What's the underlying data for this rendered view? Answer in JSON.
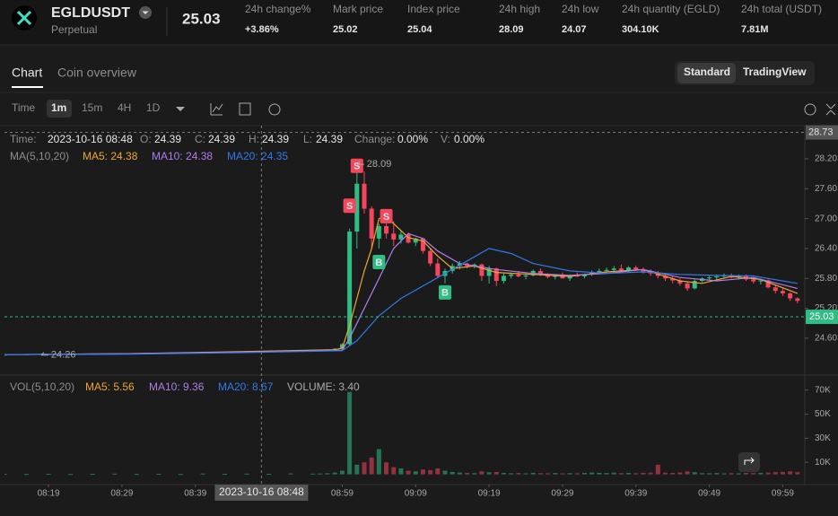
{
  "header": {
    "symbol": "EGLDUSDT",
    "contract": "Perpetual",
    "last_price": "25.03",
    "stats": [
      {
        "label": "24h change%",
        "value": "+3.86%",
        "color": "#2ebd85"
      },
      {
        "label": "Mark price",
        "value": "25.02",
        "color": "#f6465d"
      },
      {
        "label": "Index price",
        "value": "25.04"
      },
      {
        "label": "24h high",
        "value": "28.09"
      },
      {
        "label": "24h low",
        "value": "24.07"
      },
      {
        "label": "24h quantity (EGLD)",
        "value": "304.10K"
      },
      {
        "label": "24h total (USDT)",
        "value": "7.81M"
      }
    ]
  },
  "tabs": [
    "Chart",
    "Coin overview"
  ],
  "views": [
    "Standard",
    "TradingView"
  ],
  "intervals": [
    "Time",
    "1m",
    "15m",
    "4H",
    "1D"
  ],
  "chart_data": [
    {
      "type": "candlestick",
      "x": [
        "08:13",
        "08:16",
        "08:19",
        "08:22",
        "08:25",
        "08:28",
        "08:31",
        "08:34",
        "08:37",
        "08:40",
        "08:43",
        "08:46",
        "08:49",
        "08:52",
        "08:55",
        "08:56",
        "08:57",
        "08:58",
        "08:59",
        "09:00",
        "09:01",
        "09:02",
        "09:03",
        "09:04",
        "09:05",
        "09:06",
        "09:07",
        "09:08",
        "09:09",
        "09:10",
        "09:11",
        "09:12",
        "09:13",
        "09:14",
        "09:15",
        "09:16",
        "09:17",
        "09:18",
        "09:19",
        "09:20",
        "09:21",
        "09:22",
        "09:23",
        "09:24",
        "09:25",
        "09:26",
        "09:27",
        "09:28",
        "09:29",
        "09:30",
        "09:31",
        "09:32",
        "09:33",
        "09:34",
        "09:35",
        "09:36",
        "09:37",
        "09:38",
        "09:39",
        "09:40",
        "09:41",
        "09:42",
        "09:43",
        "09:44",
        "09:45",
        "09:46",
        "09:47",
        "09:48",
        "09:49",
        "09:50",
        "09:51",
        "09:52",
        "09:53",
        "09:54",
        "09:55",
        "09:56",
        "09:57",
        "09:58",
        "09:59",
        "10:00",
        "10:01"
      ],
      "candles": [
        [
          24.27,
          24.28,
          24.26,
          24.27
        ],
        [
          24.27,
          24.28,
          24.27,
          24.28
        ],
        [
          24.28,
          24.28,
          24.27,
          24.28
        ],
        [
          24.28,
          24.29,
          24.28,
          24.28
        ],
        [
          24.28,
          24.29,
          24.28,
          24.29
        ],
        [
          24.29,
          24.3,
          24.29,
          24.29
        ],
        [
          24.29,
          24.3,
          24.29,
          24.3
        ],
        [
          24.3,
          24.31,
          24.3,
          24.31
        ],
        [
          24.31,
          24.32,
          24.3,
          24.31
        ],
        [
          24.31,
          24.33,
          24.31,
          24.32
        ],
        [
          24.32,
          24.33,
          24.32,
          24.33
        ],
        [
          24.33,
          24.34,
          24.33,
          24.34
        ],
        [
          24.34,
          24.35,
          24.34,
          24.34
        ],
        [
          24.34,
          24.35,
          24.34,
          24.35
        ],
        [
          24.35,
          24.36,
          24.35,
          24.36
        ],
        [
          24.36,
          24.37,
          24.35,
          24.36
        ],
        [
          24.36,
          24.38,
          24.36,
          24.37
        ],
        [
          24.37,
          24.4,
          24.36,
          24.39
        ],
        [
          24.39,
          24.5,
          24.38,
          24.48
        ],
        [
          24.48,
          26.8,
          24.45,
          26.74
        ],
        [
          26.74,
          28.09,
          26.4,
          27.7
        ],
        [
          27.7,
          27.95,
          27.1,
          27.2
        ],
        [
          27.2,
          27.25,
          26.4,
          26.6
        ],
        [
          26.6,
          26.9,
          26.4,
          26.85
        ],
        [
          26.85,
          26.95,
          26.6,
          26.7
        ],
        [
          26.7,
          26.95,
          26.45,
          26.58
        ],
        [
          26.58,
          26.75,
          26.5,
          26.68
        ],
        [
          26.68,
          26.72,
          26.5,
          26.52
        ],
        [
          26.52,
          26.62,
          26.45,
          26.6
        ],
        [
          26.6,
          26.62,
          26.3,
          26.35
        ],
        [
          26.35,
          26.4,
          26.05,
          26.1
        ],
        [
          26.1,
          26.2,
          25.8,
          25.85
        ],
        [
          25.85,
          26.0,
          25.7,
          25.95
        ],
        [
          25.95,
          26.1,
          25.9,
          26.05
        ],
        [
          26.05,
          26.15,
          25.98,
          26.1
        ],
        [
          26.1,
          26.12,
          26.0,
          26.05
        ],
        [
          26.05,
          26.1,
          26.0,
          26.08
        ],
        [
          26.08,
          26.1,
          25.75,
          25.85
        ],
        [
          25.85,
          26.05,
          25.7,
          26.0
        ],
        [
          26.0,
          26.02,
          25.65,
          25.75
        ],
        [
          25.75,
          25.9,
          25.7,
          25.85
        ],
        [
          25.85,
          25.92,
          25.8,
          25.88
        ],
        [
          25.88,
          25.95,
          25.82,
          25.84
        ],
        [
          25.84,
          25.9,
          25.78,
          25.86
        ],
        [
          25.86,
          25.98,
          25.84,
          25.95
        ],
        [
          25.95,
          26.0,
          25.85,
          25.87
        ],
        [
          25.87,
          25.9,
          25.8,
          25.83
        ],
        [
          25.83,
          25.88,
          25.78,
          25.85
        ],
        [
          25.85,
          25.92,
          25.82,
          25.8
        ],
        [
          25.8,
          25.88,
          25.75,
          25.86
        ],
        [
          25.86,
          25.92,
          25.83,
          25.84
        ],
        [
          25.84,
          25.9,
          25.8,
          25.88
        ],
        [
          25.88,
          25.96,
          25.85,
          25.92
        ],
        [
          25.92,
          26.0,
          25.88,
          25.95
        ],
        [
          25.95,
          26.02,
          25.9,
          25.97
        ],
        [
          25.97,
          26.05,
          25.92,
          26.0
        ],
        [
          26.0,
          26.08,
          25.95,
          25.96
        ],
        [
          25.96,
          26.05,
          25.92,
          26.02
        ],
        [
          26.02,
          26.06,
          25.95,
          25.98
        ],
        [
          25.98,
          26.02,
          25.9,
          25.94
        ],
        [
          25.94,
          25.98,
          25.85,
          25.9
        ],
        [
          25.9,
          25.95,
          25.8,
          25.85
        ],
        [
          25.85,
          25.88,
          25.75,
          25.8
        ],
        [
          25.8,
          25.85,
          25.7,
          25.76
        ],
        [
          25.76,
          25.8,
          25.65,
          25.7
        ],
        [
          25.7,
          25.74,
          25.55,
          25.6
        ],
        [
          25.6,
          25.78,
          25.58,
          25.75
        ],
        [
          25.75,
          25.82,
          25.72,
          25.8
        ],
        [
          25.8,
          25.85,
          25.76,
          25.82
        ],
        [
          25.82,
          25.88,
          25.78,
          25.84
        ],
        [
          25.84,
          25.9,
          25.8,
          25.86
        ],
        [
          25.86,
          25.9,
          25.8,
          25.82
        ],
        [
          25.82,
          25.88,
          25.78,
          25.85
        ],
        [
          25.85,
          25.88,
          25.75,
          25.78
        ],
        [
          25.78,
          25.82,
          25.7,
          25.74
        ],
        [
          25.74,
          25.8,
          25.68,
          25.76
        ],
        [
          25.76,
          25.78,
          25.6,
          25.62
        ],
        [
          25.62,
          25.66,
          25.5,
          25.55
        ],
        [
          25.55,
          25.6,
          25.45,
          25.5
        ],
        [
          25.5,
          25.52,
          25.35,
          25.4
        ],
        [
          25.4,
          25.42,
          25.3,
          25.35
        ]
      ],
      "up_color": "#2ebd85",
      "down_color": "#f6465d",
      "xlim": [
        "08:13",
        "10:02"
      ],
      "xticks": [
        "08:19",
        "08:29",
        "08:39",
        "08:59",
        "09:09",
        "09:19",
        "09:29",
        "09:39",
        "09:49",
        "09:59"
      ],
      "ylim": [
        23.86,
        28.74
      ],
      "yticks": [
        {
          "value": 24.6,
          "label": "24.60"
        },
        {
          "value": 25.2,
          "label": "25.20"
        },
        {
          "value": 25.8,
          "label": "25.80"
        },
        {
          "value": 26.4,
          "label": "26.40"
        },
        {
          "value": 27.0,
          "label": "27.00"
        },
        {
          "value": 27.6,
          "label": "27.60"
        },
        {
          "value": 28.2,
          "label": "28.20"
        }
      ],
      "info": [
        {
          "label": "Time:",
          "value": "2023-10-16 08:48"
        },
        {
          "label": "O:",
          "value": "24.39"
        },
        {
          "label": "C:",
          "value": "24.39"
        },
        {
          "label": "H:",
          "value": "24.39"
        },
        {
          "label": "L:",
          "value": "24.39"
        },
        {
          "label": "Change:",
          "value": "0.00%"
        },
        {
          "label": "V:",
          "value": "0.00%"
        }
      ],
      "legend_title": "MA(5,10,20)",
      "series": [
        {
          "label": "MA5: 24.38",
          "color": "#f0a52e",
          "x": [
            "08:13",
            "08:30",
            "08:45",
            "08:58",
            "08:59",
            "09:00",
            "09:01",
            "09:02",
            "09:03",
            "09:04",
            "09:05",
            "09:06",
            "09:08",
            "09:10",
            "09:12",
            "09:14",
            "09:17",
            "09:20",
            "09:25",
            "09:30",
            "09:35",
            "09:40",
            "09:45",
            "09:48",
            "09:52",
            "09:56",
            "10:01"
          ],
          "values": [
            24.27,
            24.29,
            24.33,
            24.37,
            24.4,
            24.85,
            25.4,
            25.95,
            26.4,
            27.0,
            27.05,
            26.9,
            26.62,
            26.55,
            26.25,
            26.0,
            26.05,
            25.92,
            25.88,
            25.84,
            25.93,
            25.98,
            25.75,
            25.7,
            25.84,
            25.78,
            25.5
          ]
        },
        {
          "label": "MA10: 24.38",
          "color": "#b07ce8",
          "x": [
            "08:13",
            "08:30",
            "08:45",
            "08:59",
            "09:00",
            "09:02",
            "09:04",
            "09:06",
            "09:08",
            "09:10",
            "09:12",
            "09:15",
            "09:20",
            "09:25",
            "09:30",
            "09:35",
            "09:40",
            "09:45",
            "09:50",
            "09:55",
            "10:01"
          ],
          "values": [
            24.27,
            24.29,
            24.32,
            24.36,
            24.6,
            25.2,
            25.8,
            26.4,
            26.7,
            26.6,
            26.35,
            26.1,
            25.98,
            25.9,
            25.86,
            25.9,
            25.98,
            25.82,
            25.75,
            25.82,
            25.6
          ]
        },
        {
          "label": "MA20: 24.35",
          "color": "#2f7ae5",
          "x": [
            "08:13",
            "08:30",
            "08:45",
            "08:59",
            "09:01",
            "09:04",
            "09:07",
            "09:10",
            "09:13",
            "09:16",
            "09:19",
            "09:22",
            "09:25",
            "09:30",
            "09:35",
            "09:40",
            "09:45",
            "09:50",
            "09:55",
            "10:01"
          ],
          "values": [
            24.27,
            24.28,
            24.31,
            24.35,
            24.55,
            25.05,
            25.4,
            25.65,
            25.9,
            26.15,
            26.4,
            26.3,
            26.1,
            25.95,
            25.9,
            25.93,
            25.88,
            25.86,
            25.85,
            25.7
          ]
        }
      ],
      "markers": [
        {
          "text": "S",
          "x": "09:01",
          "y": 28.06,
          "color": "#f6465d"
        },
        {
          "text": "S",
          "x": "09:00",
          "y": 27.26,
          "color": "#f6465d"
        },
        {
          "text": "S",
          "x": "09:05",
          "y": 27.05,
          "color": "#f6465d"
        },
        {
          "text": "B",
          "x": "09:04",
          "y": 26.13,
          "color": "#2ebd85"
        },
        {
          "text": "B",
          "x": "09:13",
          "y": 25.52,
          "color": "#2ebd85"
        }
      ],
      "price_labels": [
        {
          "x": "09:01",
          "value": 28.09
        },
        {
          "x": "08:18",
          "value": 24.26
        }
      ],
      "last_price": 25.03,
      "crosshair": {
        "x": "08:48",
        "value": 28.73,
        "label": "2023-10-16 08:48"
      }
    },
    {
      "type": "bar",
      "title": "VOL(5,10,20)",
      "legend": [
        {
          "label": "MA5: 5.56",
          "color": "#f0a52e"
        },
        {
          "label": "MA10: 9.36",
          "color": "#b07ce8"
        },
        {
          "label": "MA20: 8.67",
          "color": "#2f7ae5"
        },
        {
          "label": "VOLUME: 3.40",
          "color": "#aaaaaa"
        }
      ],
      "values": [
        400,
        350,
        500,
        300,
        450,
        600,
        400,
        500,
        350,
        700,
        500,
        600,
        450,
        800,
        600,
        700,
        900,
        1500,
        3000,
        68500,
        8000,
        10000,
        14000,
        21000,
        10000,
        6000,
        5000,
        3000,
        2500,
        4000,
        3500,
        5000,
        3000,
        2000,
        1500,
        1200,
        1000,
        2500,
        1800,
        2000,
        1200,
        900,
        1100,
        800,
        1300,
        1000,
        900,
        1100,
        800,
        1000,
        900,
        1200,
        1500,
        1300,
        1100,
        1400,
        1000,
        1200,
        900,
        1300,
        1500,
        8000,
        1400,
        1200,
        1600,
        2500,
        1800,
        1000,
        900,
        1100,
        800,
        1000,
        900,
        1200,
        1100,
        1300,
        1500,
        1800,
        2000,
        2500,
        1800
      ],
      "ylim": [
        -8500,
        81000
      ],
      "yticks": [
        {
          "value": 70000,
          "label": "70K"
        },
        {
          "value": 50000,
          "label": "50K"
        },
        {
          "value": 30000,
          "label": "30K"
        },
        {
          "value": 10000,
          "label": "10K"
        }
      ]
    }
  ]
}
